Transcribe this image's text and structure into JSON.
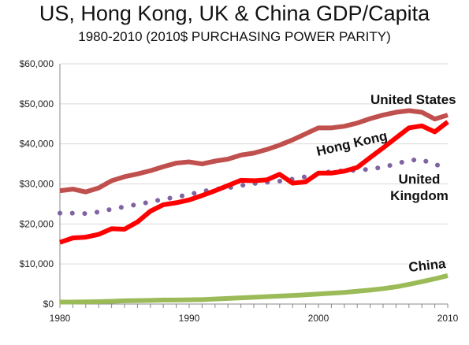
{
  "chart_data": {
    "type": "line",
    "title": "US, Hong Kong, UK & China GDP/Capita",
    "subtitle": "1980-2010 (2010$ PURCHASING POWER PARITY)",
    "x": [
      1980,
      1981,
      1982,
      1983,
      1984,
      1985,
      1986,
      1987,
      1988,
      1989,
      1990,
      1991,
      1992,
      1993,
      1994,
      1995,
      1996,
      1997,
      1998,
      1999,
      2000,
      2001,
      2002,
      2003,
      2004,
      2005,
      2006,
      2007,
      2008,
      2009,
      2010
    ],
    "x_ticks": [
      1980,
      1990,
      2000,
      2010
    ],
    "x_tick_labels": [
      "1980",
      "1990",
      "2000",
      "2010"
    ],
    "y_ticks": [
      0,
      10000,
      20000,
      30000,
      40000,
      50000,
      60000
    ],
    "y_tick_labels": [
      "$0",
      "$10,000",
      "$20,000",
      "$30,000",
      "$40,000",
      "$50,000",
      "$60,000"
    ],
    "ylim": [
      0,
      60000
    ],
    "xlim": [
      1980,
      2010
    ],
    "grid": "horizontal",
    "series": [
      {
        "name": "United States",
        "label_lines": [
          "United States"
        ],
        "color": "#c0504d",
        "style": "solid",
        "values": [
          28300,
          28700,
          28000,
          29000,
          30800,
          31800,
          32500,
          33300,
          34300,
          35200,
          35500,
          35000,
          35700,
          36200,
          37200,
          37700,
          38600,
          39700,
          41000,
          42500,
          44000,
          44000,
          44400,
          45200,
          46300,
          47200,
          47900,
          48300,
          47900,
          46200,
          47200
        ]
      },
      {
        "name": "Hong Kong",
        "label_lines": [
          "Hong Kong"
        ],
        "color": "#ff0000",
        "style": "solid",
        "values": [
          15400,
          16500,
          16700,
          17400,
          18800,
          18700,
          20500,
          23200,
          24800,
          25300,
          26000,
          27100,
          28300,
          29600,
          30900,
          30800,
          31000,
          32400,
          30200,
          30500,
          32700,
          32700,
          33200,
          34100,
          36600,
          39000,
          41500,
          44000,
          44500,
          43000,
          45500
        ]
      },
      {
        "name": "United Kingdom",
        "label_lines": [
          "United",
          "Kingdom"
        ],
        "color": "#8064a2",
        "style": "dotted",
        "values": [
          22700,
          22700,
          22600,
          23000,
          23700,
          24300,
          24900,
          25500,
          26200,
          26700,
          27400,
          28100,
          28700,
          29000,
          29600,
          30100,
          30400,
          30700,
          31200,
          31800,
          32500,
          33100,
          33300,
          33400,
          33700,
          34200,
          35000,
          35900,
          36100,
          34700,
          34700
        ]
      },
      {
        "name": "China",
        "label_lines": [
          "China"
        ],
        "color": "#9bbb59",
        "style": "solid",
        "values": [
          500,
          500,
          550,
          600,
          700,
          800,
          850,
          900,
          1000,
          1000,
          1050,
          1100,
          1250,
          1400,
          1550,
          1700,
          1850,
          2000,
          2150,
          2300,
          2500,
          2700,
          2900,
          3200,
          3500,
          3850,
          4300,
          4900,
          5600,
          6300,
          7100
        ]
      }
    ]
  }
}
